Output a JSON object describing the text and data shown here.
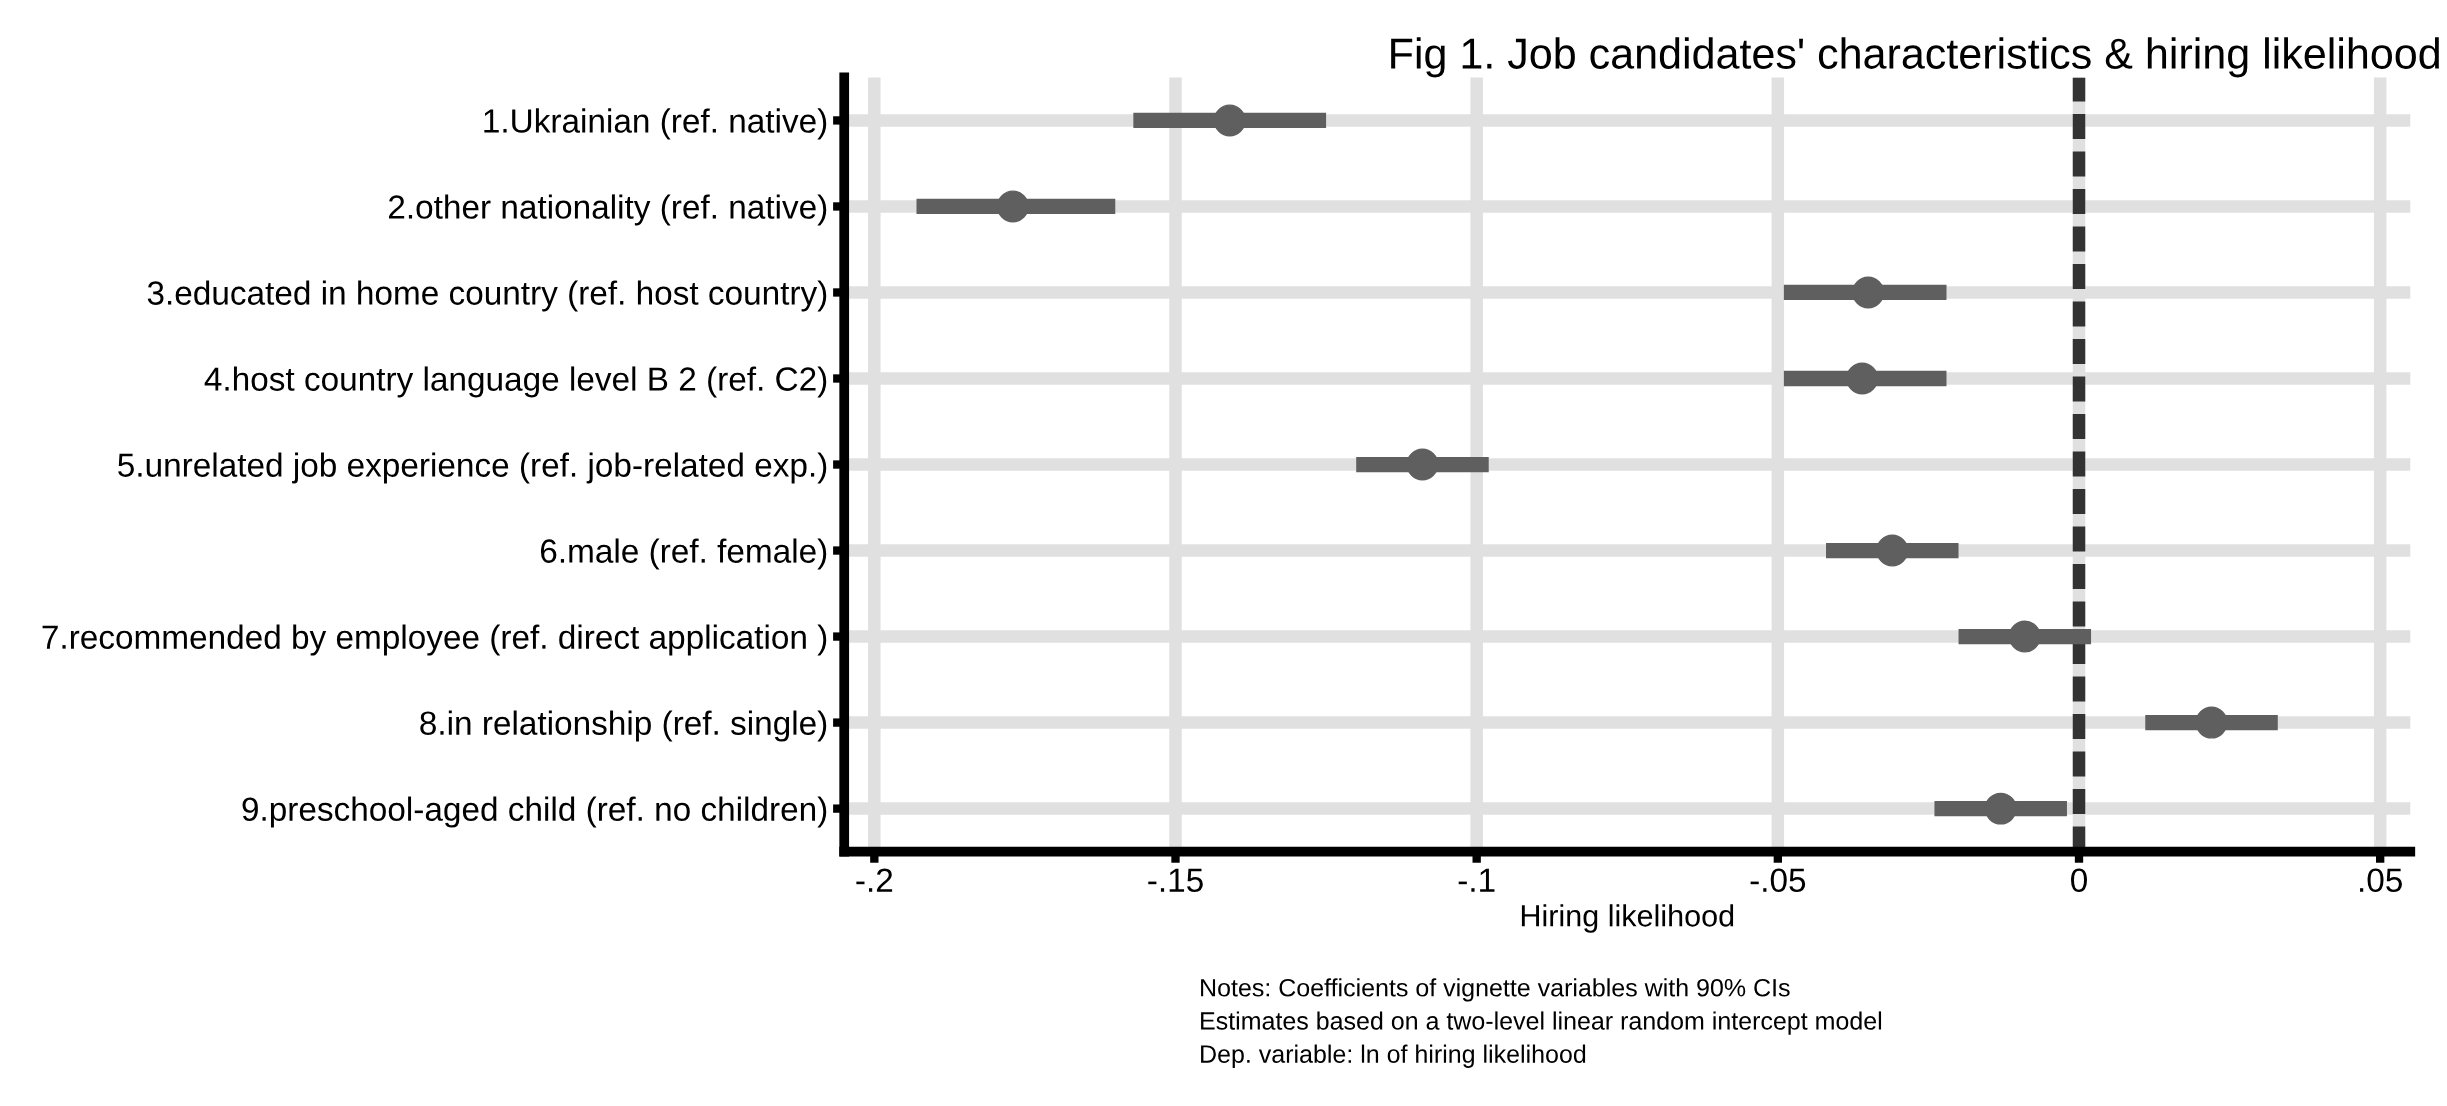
{
  "chart_data": {
    "type": "scatter",
    "orientation": "horizontal",
    "title": "Fig 1. Job candidates' characteristics & hiring likelihood",
    "xlabel": "Hiring likelihood",
    "categories": [
      "1.Ukrainian (ref. native)",
      "2.other nationality (ref. native)",
      "3.educated in home country (ref. host country)",
      "4.host country language level B 2 (ref. C2)",
      "5.unrelated job experience (ref. job-related exp.)",
      "6.male (ref. female)",
      "7.recommended by employee (ref. direct application )",
      "8.in relationship (ref. single)",
      "9.preschool-aged child (ref. no children)"
    ],
    "values": [
      -0.141,
      -0.177,
      -0.035,
      -0.036,
      -0.109,
      -0.031,
      -0.009,
      0.022,
      -0.013
    ],
    "errors": [
      [
        -0.157,
        -0.125
      ],
      [
        -0.193,
        -0.16
      ],
      [
        -0.049,
        -0.022
      ],
      [
        -0.049,
        -0.022
      ],
      [
        -0.12,
        -0.098
      ],
      [
        -0.042,
        -0.02
      ],
      [
        -0.02,
        0.002
      ],
      [
        0.011,
        0.033
      ],
      [
        -0.024,
        -0.002
      ]
    ],
    "color": "#5f5f5f",
    "marker": "circle",
    "xlim": [
      -0.205,
      0.055
    ],
    "xticks": [
      {
        "value": -0.2,
        "label": "-.2"
      },
      {
        "value": -0.15,
        "label": "-.15"
      },
      {
        "value": -0.1,
        "label": "-.1"
      },
      {
        "value": -0.05,
        "label": "-.05"
      },
      0,
      {
        "value": 0.05,
        "label": ".05"
      }
    ],
    "grid": true,
    "ref_lines": [
      {
        "axis": "x",
        "value": 0,
        "color": "#333333",
        "line_style": "dashed"
      }
    ],
    "annotations": [
      "Notes: Coefficients of vignette variables with 90% CIs",
      "Estimates based on a two-level linear random intercept model",
      "Dep. variable: ln of hiring likelihood"
    ]
  }
}
